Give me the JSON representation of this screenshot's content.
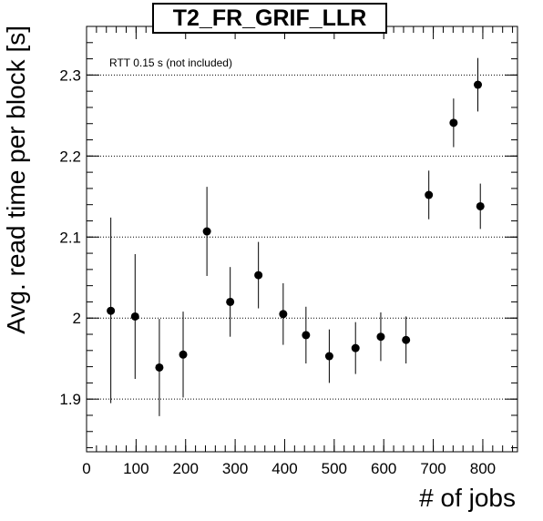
{
  "chart_data": {
    "type": "scatter",
    "title": "T2_FR_GRIF_LLR",
    "xlabel": "# of jobs",
    "ylabel": "Avg. read time per block [s]",
    "annotation": "RTT 0.15 s (not included)",
    "xlim": [
      0,
      870
    ],
    "ylim": [
      1.835,
      2.36
    ],
    "x_ticks": [
      0,
      100,
      200,
      300,
      400,
      500,
      600,
      700,
      800
    ],
    "y_ticks": [
      1.9,
      2.0,
      2.1,
      2.2,
      2.3
    ],
    "y_tick_labels": [
      "1.9",
      "2",
      "2.1",
      "2.2",
      "2.3"
    ],
    "grid": "y-dotted",
    "marker_color": "#000000",
    "points": [
      {
        "x": 49,
        "y": 2.009,
        "err_low": 0.114,
        "err_high": 0.115
      },
      {
        "x": 98,
        "y": 2.002,
        "err_low": 0.077,
        "err_high": 0.077
      },
      {
        "x": 147,
        "y": 1.939,
        "err_low": 0.06,
        "err_high": 0.06
      },
      {
        "x": 195,
        "y": 1.955,
        "err_low": 0.053,
        "err_high": 0.053
      },
      {
        "x": 243,
        "y": 2.107,
        "err_low": 0.055,
        "err_high": 0.055
      },
      {
        "x": 290,
        "y": 2.02,
        "err_low": 0.043,
        "err_high": 0.043
      },
      {
        "x": 347,
        "y": 2.053,
        "err_low": 0.041,
        "err_high": 0.041
      },
      {
        "x": 397,
        "y": 2.005,
        "err_low": 0.038,
        "err_high": 0.038
      },
      {
        "x": 443,
        "y": 1.979,
        "err_low": 0.035,
        "err_high": 0.035
      },
      {
        "x": 490,
        "y": 1.953,
        "err_low": 0.033,
        "err_high": 0.033
      },
      {
        "x": 543,
        "y": 1.963,
        "err_low": 0.032,
        "err_high": 0.032
      },
      {
        "x": 594,
        "y": 1.977,
        "err_low": 0.03,
        "err_high": 0.03
      },
      {
        "x": 645,
        "y": 1.973,
        "err_low": 0.029,
        "err_high": 0.029
      },
      {
        "x": 691,
        "y": 2.152,
        "err_low": 0.03,
        "err_high": 0.03
      },
      {
        "x": 741,
        "y": 2.241,
        "err_low": 0.03,
        "err_high": 0.03
      },
      {
        "x": 790,
        "y": 2.288,
        "err_low": 0.033,
        "err_high": 0.033
      },
      {
        "x": 795,
        "y": 2.138,
        "err_low": 0.028,
        "err_high": 0.028
      }
    ]
  }
}
